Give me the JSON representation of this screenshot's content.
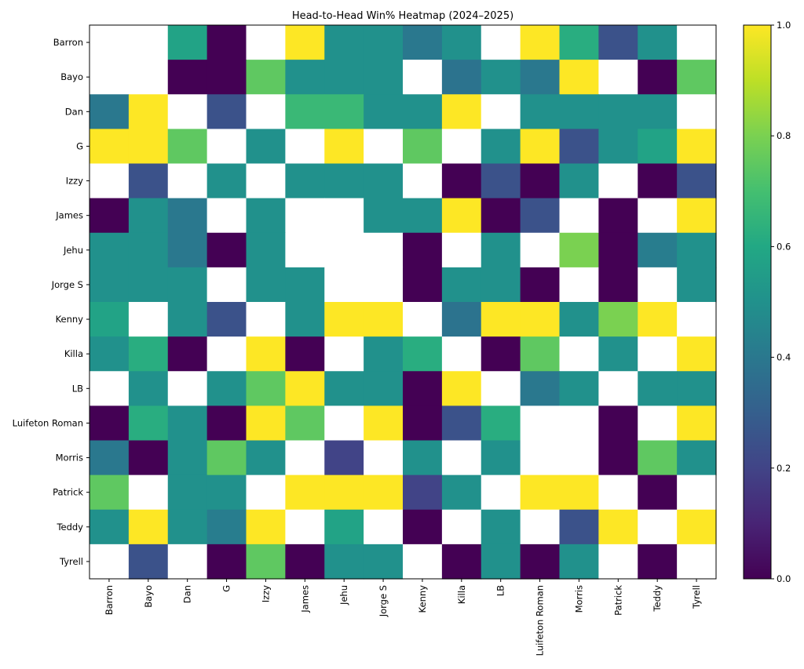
{
  "chart_data": {
    "type": "heatmap",
    "title": "Head-to-Head Win% Heatmap (2024–2025)",
    "xlabel": "",
    "ylabel": "",
    "rows": [
      "Barron",
      "Bayo",
      "Dan",
      "G",
      "Izzy",
      "James",
      "Jehu",
      "Jorge S",
      "Kenny",
      "Killa",
      "LB",
      "Luifeton Roman",
      "Morris",
      "Patrick",
      "Teddy",
      "Tyrell"
    ],
    "cols": [
      "Barron",
      "Bayo",
      "Dan",
      "G",
      "Izzy",
      "James",
      "Jehu",
      "Jorge S",
      "Kenny",
      "Killa",
      "LB",
      "Luifeton Roman",
      "Morris",
      "Patrick",
      "Teddy",
      "Tyrell"
    ],
    "values": [
      [
        null,
        null,
        0.58,
        0.0,
        null,
        1.0,
        0.5,
        0.5,
        0.4,
        0.5,
        null,
        1.0,
        0.62,
        0.25,
        0.5,
        null
      ],
      [
        null,
        null,
        0.0,
        0.0,
        0.75,
        0.5,
        0.5,
        0.5,
        null,
        0.38,
        0.5,
        0.4,
        1.0,
        null,
        0.0,
        0.75
      ],
      [
        0.4,
        1.0,
        null,
        0.25,
        null,
        0.67,
        0.67,
        0.5,
        0.5,
        1.0,
        null,
        0.5,
        0.5,
        0.5,
        0.5,
        null
      ],
      [
        1.0,
        1.0,
        0.75,
        null,
        0.5,
        null,
        1.0,
        null,
        0.75,
        null,
        0.5,
        1.0,
        0.25,
        0.5,
        0.58,
        1.0
      ],
      [
        null,
        0.25,
        null,
        0.5,
        null,
        0.5,
        0.5,
        0.5,
        null,
        0.0,
        0.25,
        0.0,
        0.5,
        null,
        0.0,
        0.25
      ],
      [
        0.0,
        0.5,
        0.4,
        null,
        0.5,
        null,
        null,
        0.5,
        0.5,
        1.0,
        0.0,
        0.25,
        null,
        0.0,
        null,
        1.0
      ],
      [
        0.5,
        0.5,
        0.4,
        0.0,
        0.5,
        null,
        null,
        null,
        0.0,
        null,
        0.5,
        null,
        0.8,
        0.0,
        0.42,
        0.5
      ],
      [
        0.5,
        0.5,
        0.5,
        null,
        0.5,
        0.5,
        null,
        null,
        0.0,
        0.5,
        0.5,
        0.0,
        null,
        0.0,
        null,
        0.5
      ],
      [
        0.58,
        null,
        0.5,
        0.25,
        null,
        0.5,
        1.0,
        1.0,
        null,
        0.38,
        1.0,
        1.0,
        0.5,
        0.8,
        1.0,
        null
      ],
      [
        0.5,
        0.62,
        0.0,
        null,
        1.0,
        0.0,
        null,
        0.5,
        0.62,
        null,
        0.0,
        0.75,
        null,
        0.5,
        null,
        1.0
      ],
      [
        null,
        0.5,
        null,
        0.5,
        0.75,
        1.0,
        0.5,
        0.5,
        0.0,
        1.0,
        null,
        0.4,
        0.5,
        null,
        0.5,
        0.5
      ],
      [
        0.0,
        0.62,
        0.5,
        0.0,
        1.0,
        0.75,
        null,
        1.0,
        0.0,
        0.25,
        0.62,
        null,
        null,
        0.0,
        null,
        1.0
      ],
      [
        0.4,
        0.0,
        0.5,
        0.75,
        0.5,
        null,
        0.2,
        null,
        0.5,
        null,
        0.5,
        null,
        null,
        0.0,
        0.75,
        0.5
      ],
      [
        0.75,
        null,
        0.5,
        0.5,
        null,
        1.0,
        1.0,
        1.0,
        0.2,
        0.5,
        null,
        1.0,
        1.0,
        null,
        0.0,
        null
      ],
      [
        0.5,
        1.0,
        0.5,
        0.42,
        1.0,
        null,
        0.58,
        null,
        0.0,
        null,
        0.5,
        null,
        0.25,
        1.0,
        null,
        1.0
      ],
      [
        null,
        0.25,
        null,
        0.0,
        0.75,
        0.0,
        0.5,
        0.5,
        null,
        0.0,
        0.5,
        0.0,
        0.5,
        null,
        0.0,
        null
      ]
    ],
    "colorbar": {
      "min": 0.0,
      "max": 1.0,
      "ticks": [
        "0.0",
        "0.2",
        "0.4",
        "0.6",
        "0.8",
        "1.0"
      ],
      "colormap": "viridis"
    },
    "grid": false,
    "missing_color": "#ffffff"
  }
}
